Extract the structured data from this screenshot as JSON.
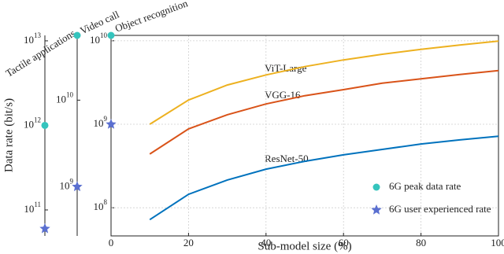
{
  "chart_data": [
    {
      "type": "strip",
      "title": "Tactile applications",
      "ylabel": "Data rate (bit/s)",
      "log_y": true,
      "ylim": [
        49300000000.0,
        11600000000000.0
      ],
      "yticks": [
        {
          "value": 100000000000.0,
          "label": "10^11"
        },
        {
          "value": 1000000000000.0,
          "label": "10^12"
        },
        {
          "value": 10000000000000.0,
          "label": "10^13"
        }
      ],
      "peak": 1000000000000.0,
      "experienced": 60000000000.0
    },
    {
      "type": "strip",
      "title": "Video call",
      "log_y": true,
      "ylim": [
        270000000.0,
        56000000000.0
      ],
      "yticks": [
        {
          "value": 1000000000.0,
          "label": "10^9"
        },
        {
          "value": 10000000000.0,
          "label": "10^10"
        }
      ],
      "peak": 56000000000.0,
      "experienced": 1000000000.0
    },
    {
      "type": "line",
      "title": "Object recognition",
      "xlabel": "Sub-model size (%)",
      "log_y": true,
      "grid": true,
      "xlim": [
        0,
        100
      ],
      "xticks": [
        0,
        20,
        40,
        60,
        80,
        100
      ],
      "ylim": [
        46000000.0,
        11600000000.0
      ],
      "yticks": [
        {
          "value": 100000000.0,
          "label": "10^8"
        },
        {
          "value": 1000000000.0,
          "label": "10^9"
        },
        {
          "value": 10000000000.0,
          "label": "10^10"
        }
      ],
      "peak": 11600000000.0,
      "experienced": 1000000000.0,
      "x": [
        10,
        20,
        30,
        40,
        50,
        60,
        70,
        80,
        90,
        100
      ],
      "series": [
        {
          "name": "ViT-Large",
          "color": "#edb120",
          "values": [
            1000000000.0,
            1950000000.0,
            2950000000.0,
            3900000000.0,
            4900000000.0,
            5900000000.0,
            6900000000.0,
            7900000000.0,
            8900000000.0,
            9900000000.0
          ]
        },
        {
          "name": "VGG-16",
          "color": "#d95319",
          "values": [
            440000000.0,
            880000000.0,
            1300000000.0,
            1750000000.0,
            2200000000.0,
            2600000000.0,
            3100000000.0,
            3500000000.0,
            3950000000.0,
            4400000000.0
          ]
        },
        {
          "name": "ResNet-50",
          "color": "#0072bd",
          "values": [
            72000000.0,
            145000000.0,
            215000000.0,
            290000000.0,
            360000000.0,
            430000000.0,
            500000000.0,
            580000000.0,
            650000000.0,
            720000000.0
          ]
        }
      ]
    }
  ],
  "legend": [
    {
      "name": "6G peak data rate",
      "color": "#35c4bd",
      "marker": "circle"
    },
    {
      "name": "6G user experienced rate",
      "color": "#5a6fd0",
      "marker": "star"
    }
  ]
}
